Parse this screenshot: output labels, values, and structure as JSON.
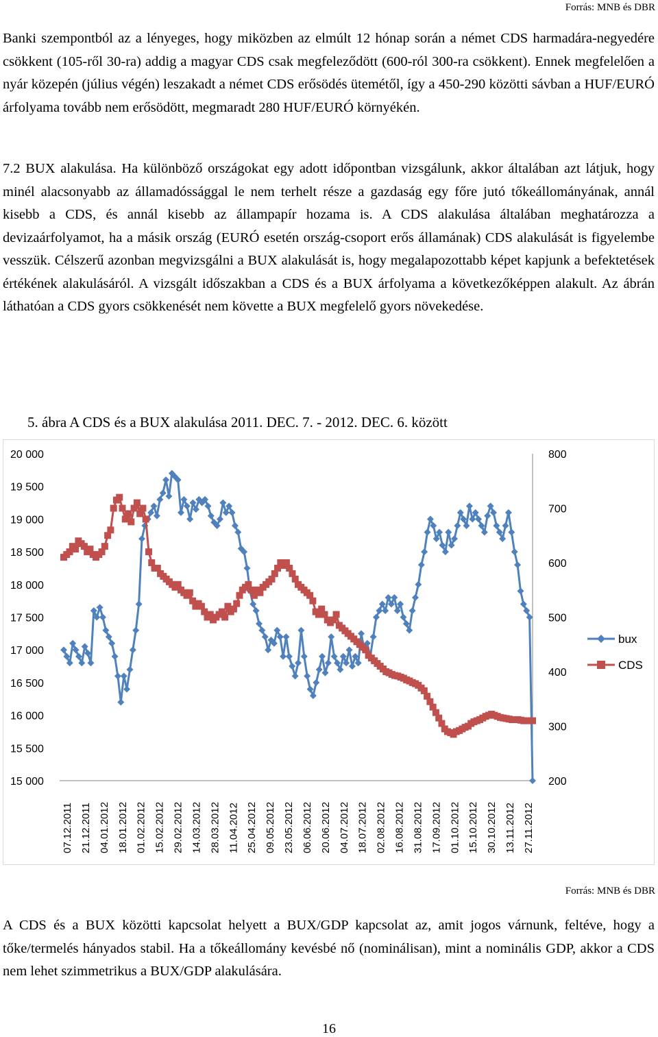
{
  "source_top": "Forrás: MNB és DBR",
  "paragraph1": "Banki szempontból az a lényeges, hogy miközben az elmúlt 12 hónap során a német CDS harmadára-negyedére csökkent (105-ről 30-ra) addig a magyar CDS csak megfeleződött (600-ról 300-ra csökkent). Ennek megfelelően a nyár közepén (július végén) leszakadt a német CDS erősödés ütemétől, így a 450-290 közötti sávban a HUF/EURÓ árfolyama tovább nem erősödött, megmaradt 280 HUF/EURÓ környékén.",
  "section_heading": "7.2 BUX alakulása.",
  "paragraph2": "Ha különböző országokat egy adott időpontban vizsgálunk, akkor általában azt látjuk, hogy minél alacsonyabb az államadóssággal le nem terhelt része a gazdaság egy főre jutó tőkeállományának, annál kisebb a CDS, és annál kisebb az állampapír hozama is. A CDS alakulása általában meghatározza a devizaárfolyamot, ha a másik ország (EURÓ esetén ország-csoport erős államának) CDS alakulását is figyelembe vesszük. Célszerű azonban megvizsgálni a BUX alakulását is, hogy megalapozottabb képet kapjunk a befektetések értékének alakulásáról. A vizsgált időszakban a CDS és a BUX árfolyama a következőképpen alakult. Az ábrán láthatóan a CDS gyors csökkenését nem követte a BUX megfelelő gyors növekedése.",
  "figure_caption": "5.   ábra A CDS és a BUX alakulása 2011. DEC. 7. - 2012. DEC. 6. között",
  "source_bottom": "Forrás: MNB és DBR",
  "paragraph3": "A CDS és a BUX közötti kapcsolat helyett a BUX/GDP kapcsolat az, amit jogos várnunk, feltéve, hogy a tőke/termelés hányados stabil. Ha a tőkeállomány kevésbé nő (nominálisan), mint a nominális GDP, akkor a CDS nem lehet szimmetrikus a BUX/GDP alakulására.",
  "page_number": "16",
  "chart_data": {
    "type": "line",
    "title": "",
    "left_axis": {
      "min": 15000,
      "max": 20000,
      "ticks": [
        "20 000",
        "19 500",
        "19 000",
        "18 500",
        "18 000",
        "17 500",
        "17 000",
        "16 500",
        "16 000",
        "15 500",
        "15 000"
      ]
    },
    "right_axis": {
      "min": 200,
      "max": 800,
      "ticks": [
        "800",
        "700",
        "600",
        "500",
        "400",
        "300",
        "200"
      ]
    },
    "x_tick_labels": [
      "07.12.2011",
      "21.12.2011",
      "04.01.2012",
      "18.01.2012",
      "01.02.2012",
      "15.02.2012",
      "29.02.2012",
      "14.03.2012",
      "28.03.2012",
      "11.04.2012",
      "25.04.2012",
      "09.05.2012",
      "23.05.2012",
      "06.06.2012",
      "20.06.2012",
      "04.07.2012",
      "18.07.2012",
      "02.08.2012",
      "16.08.2012",
      "31.08.2012",
      "17.09.2012",
      "01.10.2012",
      "15.10.2012",
      "30.10.2012",
      "13.11.2012",
      "27.11.2012"
    ],
    "legend_position": "right",
    "grid": false,
    "series": [
      {
        "name": "bux",
        "axis": "left",
        "color": "#4f81bd",
        "marker": "diamond",
        "values": [
          17000,
          16900,
          16800,
          17100,
          17000,
          16900,
          16800,
          17050,
          16950,
          16800,
          17600,
          17500,
          17650,
          17500,
          17300,
          17200,
          17100,
          16900,
          16600,
          16200,
          16600,
          16400,
          16700,
          17000,
          17300,
          17700,
          18700,
          18900,
          19000,
          19100,
          19200,
          19050,
          19300,
          19400,
          19600,
          19350,
          19700,
          19650,
          19600,
          19100,
          19300,
          19200,
          19000,
          19250,
          19150,
          19300,
          19250,
          19300,
          19200,
          19050,
          18950,
          18900,
          19000,
          19250,
          19100,
          19200,
          19100,
          18900,
          18800,
          18550,
          18500,
          18250,
          17900,
          17700,
          17600,
          17400,
          17300,
          17200,
          17000,
          17150,
          17100,
          17300,
          17200,
          16900,
          17200,
          16900,
          16750,
          16600,
          16800,
          17300,
          16900,
          16600,
          16400,
          16300,
          16500,
          16700,
          16900,
          16650,
          16800,
          17200,
          16900,
          16800,
          16700,
          16900,
          16800,
          17000,
          16750,
          16900,
          16800,
          17250,
          17000,
          17100,
          16900,
          17200,
          17500,
          17600,
          17700,
          17600,
          17800,
          17700,
          17800,
          17600,
          17700,
          17500,
          17400,
          17300,
          17600,
          17800,
          18000,
          18300,
          18500,
          18800,
          19000,
          18900,
          18700,
          18800,
          18600,
          18500,
          18800,
          18600,
          18700,
          18900,
          19100,
          19000,
          18900,
          19200,
          19000,
          19100,
          19000,
          18900,
          18800,
          19050,
          19200,
          19100,
          18900,
          18800,
          18700,
          18900,
          19100,
          18800,
          18500,
          18300,
          17900,
          17700,
          17600,
          17500,
          15000
        ]
      },
      {
        "name": "CDS",
        "axis": "right",
        "color": "#c0504d",
        "marker": "square",
        "values": [
          610,
          615,
          620,
          630,
          625,
          640,
          635,
          630,
          620,
          625,
          615,
          610,
          615,
          620,
          630,
          650,
          660,
          700,
          715,
          720,
          700,
          680,
          690,
          675,
          700,
          710,
          690,
          700,
          680,
          620,
          600,
          590,
          590,
          580,
          575,
          570,
          565,
          560,
          555,
          560,
          550,
          545,
          540,
          545,
          530,
          520,
          525,
          520,
          510,
          500,
          505,
          495,
          500,
          505,
          510,
          500,
          520,
          510,
          515,
          525,
          540,
          550,
          555,
          560,
          550,
          540,
          550,
          545,
          555,
          560,
          565,
          570,
          580,
          590,
          600,
          595,
          600,
          590,
          580,
          570,
          560,
          555,
          550,
          545,
          540,
          530,
          510,
          505,
          515,
          505,
          495,
          490,
          495,
          505,
          485,
          480,
          475,
          470,
          465,
          460,
          455,
          450,
          445,
          440,
          430,
          425,
          420,
          415,
          410,
          405,
          400,
          398,
          395,
          393,
          392,
          390,
          388,
          385,
          383,
          380,
          378,
          375,
          370,
          365,
          355,
          345,
          335,
          325,
          315,
          305,
          295,
          290,
          288,
          285,
          290,
          292,
          295,
          298,
          300,
          305,
          308,
          310,
          312,
          315,
          318,
          320,
          322,
          320,
          318,
          316,
          315,
          314,
          313,
          312,
          312,
          312,
          311,
          310,
          310,
          310,
          310
        ]
      }
    ]
  }
}
